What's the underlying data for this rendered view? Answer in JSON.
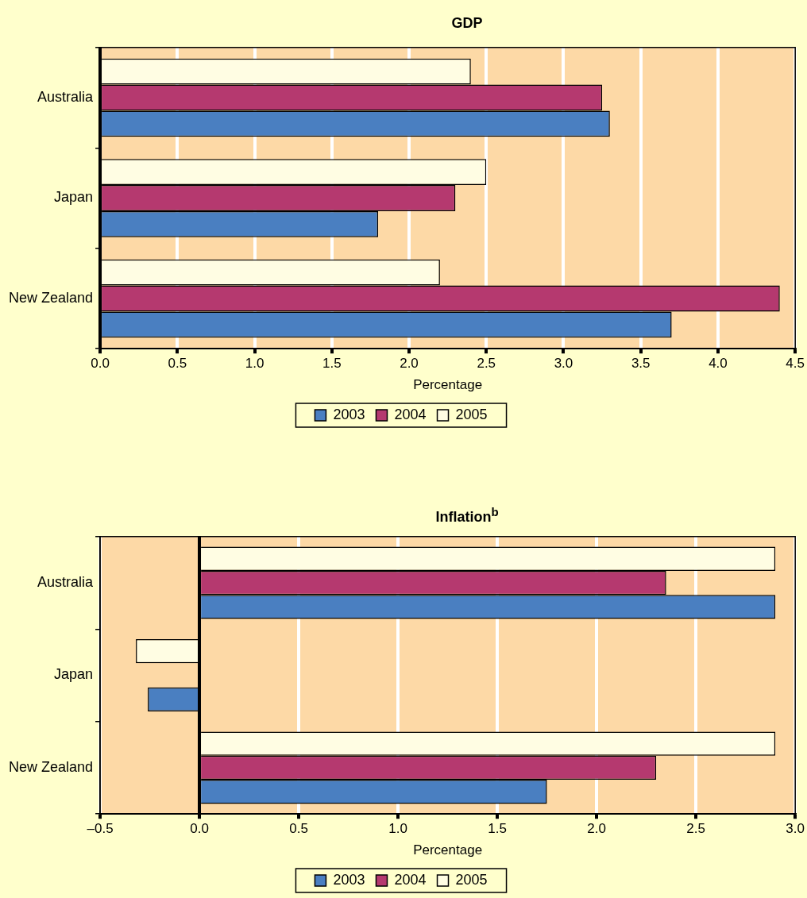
{
  "chart_data": [
    {
      "type": "bar",
      "orientation": "horizontal",
      "title": "GDP",
      "xlabel": "Percentage",
      "categories": [
        "Australia",
        "Japan",
        "New Zealand"
      ],
      "series": [
        {
          "name": "2003",
          "color": "#4a7fc1",
          "values": [
            3.3,
            1.8,
            3.7
          ]
        },
        {
          "name": "2004",
          "color": "#b5396f",
          "values": [
            3.25,
            2.3,
            4.4
          ]
        },
        {
          "name": "2005",
          "color": "#fffde3",
          "values": [
            2.4,
            2.5,
            2.2
          ]
        }
      ],
      "xlim": [
        0,
        4.5
      ],
      "xticks": [
        {
          "value": 0,
          "label": "0.0"
        },
        {
          "value": 0.5,
          "label": "0.5"
        },
        {
          "value": 1,
          "label": "1.0"
        },
        {
          "value": 1.5,
          "label": "1.5"
        },
        {
          "value": 2,
          "label": "2.0"
        },
        {
          "value": 2.5,
          "label": "2.5"
        },
        {
          "value": 3,
          "label": "3.0"
        },
        {
          "value": 3.5,
          "label": "3.5"
        },
        {
          "value": 4,
          "label": "4.0"
        },
        {
          "value": 4.5,
          "label": "4.5"
        }
      ],
      "grid": "x",
      "legend": "bottom"
    },
    {
      "type": "bar",
      "orientation": "horizontal",
      "title": "Inflation$^{b}$",
      "xlabel": "Percentage",
      "categories": [
        "Australia",
        "Japan",
        "New Zealand"
      ],
      "series": [
        {
          "name": "2003",
          "color": "#4a7fc1",
          "values": [
            2.9,
            -0.26,
            1.75
          ]
        },
        {
          "name": "2004",
          "color": "#b5396f",
          "values": [
            2.35,
            null,
            2.3
          ]
        },
        {
          "name": "2005",
          "color": "#fffde3",
          "values": [
            2.9,
            -0.32,
            2.9
          ]
        }
      ],
      "xlim": [
        -0.5,
        3
      ],
      "xticks": [
        {
          "value": -0.5,
          "label": "–0.5"
        },
        {
          "value": 0,
          "label": "0.0"
        },
        {
          "value": 0.5,
          "label": "0.5"
        },
        {
          "value": 1,
          "label": "1.0"
        },
        {
          "value": 1.5,
          "label": "1.5"
        },
        {
          "value": 2,
          "label": "2.0"
        },
        {
          "value": 2.5,
          "label": "2.5"
        },
        {
          "value": 3,
          "label": "3.0"
        }
      ],
      "grid": "x",
      "legend": "bottom"
    }
  ]
}
